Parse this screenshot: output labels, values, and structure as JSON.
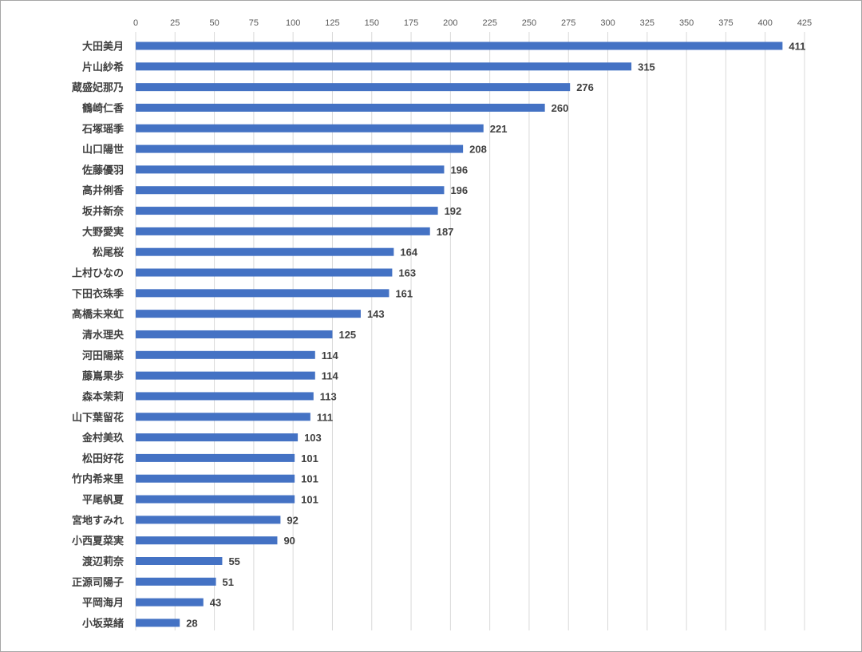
{
  "chart_data": {
    "type": "bar",
    "orientation": "horizontal",
    "title": "",
    "xlabel": "",
    "ylabel": "",
    "xlim": [
      0,
      425
    ],
    "xticks": [
      0,
      25,
      50,
      75,
      100,
      125,
      150,
      175,
      200,
      225,
      250,
      275,
      300,
      325,
      350,
      375,
      400,
      425
    ],
    "x_axis_position": "top",
    "grid": "vertical",
    "legend": "none",
    "bar_color": "#4472c4",
    "data_labels": true,
    "categories": [
      "大田美月",
      "片山紗希",
      "蔵盛妃那乃",
      "鶴崎仁香",
      "石塚瑶季",
      "山口陽世",
      "佐藤優羽",
      "高井俐香",
      "坂井新奈",
      "大野愛実",
      "松尾桜",
      "上村ひなの",
      "下田衣珠季",
      "髙橋未来虹",
      "清水理央",
      "河田陽菜",
      "藤嶌果歩",
      "森本茉莉",
      "山下葉留花",
      "金村美玖",
      "松田好花",
      "竹内希来里",
      "平尾帆夏",
      "宮地すみれ",
      "小西夏菜実",
      "渡辺莉奈",
      "正源司陽子",
      "平岡海月",
      "小坂菜緒"
    ],
    "values": [
      411,
      315,
      276,
      260,
      221,
      208,
      196,
      196,
      192,
      187,
      164,
      163,
      161,
      143,
      125,
      114,
      114,
      113,
      111,
      103,
      101,
      101,
      101,
      92,
      90,
      55,
      51,
      43,
      28
    ]
  }
}
